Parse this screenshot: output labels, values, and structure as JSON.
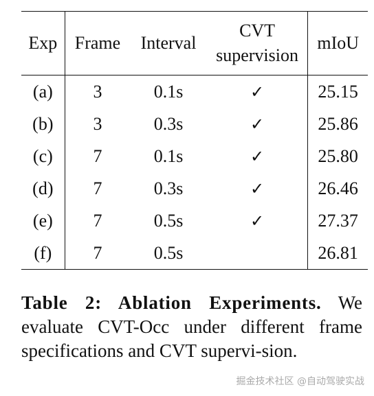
{
  "table": {
    "headers": {
      "exp": "Exp",
      "frame": "Frame",
      "interval": "Interval",
      "cvt_line1": "CVT",
      "cvt_line2": "supervision",
      "miou": "mIoU"
    },
    "rows": [
      {
        "exp": "(a)",
        "frame": "3",
        "interval": "0.1s",
        "cvt": "✓",
        "miou": "25.15"
      },
      {
        "exp": "(b)",
        "frame": "3",
        "interval": "0.3s",
        "cvt": "✓",
        "miou": "25.86"
      },
      {
        "exp": "(c)",
        "frame": "7",
        "interval": "0.1s",
        "cvt": "✓",
        "miou": "25.80"
      },
      {
        "exp": "(d)",
        "frame": "7",
        "interval": "0.3s",
        "cvt": "✓",
        "miou": "26.46"
      },
      {
        "exp": "(e)",
        "frame": "7",
        "interval": "0.5s",
        "cvt": "✓",
        "miou": "27.37"
      },
      {
        "exp": "(f)",
        "frame": "7",
        "interval": "0.5s",
        "cvt": "",
        "miou": "26.81"
      }
    ]
  },
  "caption": {
    "title": "Table 2: Ablation Experiments.",
    "body": "We evaluate CVT-Occ under different frame specifications and CVT supervi-sion."
  },
  "watermark": "掘金技术社区 @自动驾驶实战"
}
